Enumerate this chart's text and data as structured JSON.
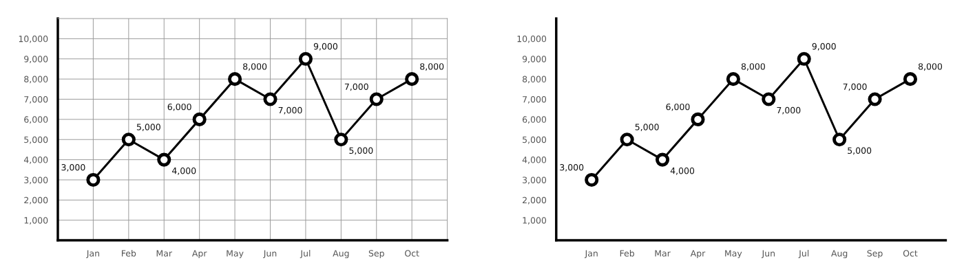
{
  "chart_data": [
    {
      "type": "line",
      "categories": [
        "Jan",
        "Feb",
        "Mar",
        "Apr",
        "May",
        "Jun",
        "Jul",
        "Aug",
        "Sep",
        "Oct"
      ],
      "series": [
        {
          "color": "#000000",
          "values": [
            3000,
            5000,
            4000,
            6000,
            8000,
            7000,
            9000,
            5000,
            7000,
            8000
          ],
          "value_labels": [
            "3,000",
            "5,000",
            "4,000",
            "6,000",
            "8,000",
            "7,000",
            "9,000",
            "5,000",
            "7,000",
            "8,000"
          ]
        }
      ],
      "ylim": [
        0,
        11000
      ],
      "yticks": [
        {
          "value": 1000,
          "label": "1,000"
        },
        {
          "value": 2000,
          "label": "2,000"
        },
        {
          "value": 3000,
          "label": "3,000"
        },
        {
          "value": 4000,
          "label": "4,000"
        },
        {
          "value": 5000,
          "label": "5,000"
        },
        {
          "value": 6000,
          "label": "6,000"
        },
        {
          "value": 7000,
          "label": "7,000"
        },
        {
          "value": 8000,
          "label": "8,000"
        },
        {
          "value": 9000,
          "label": "9,000"
        },
        {
          "value": 10000,
          "label": "10,000"
        }
      ],
      "grid": true,
      "marker": "circle",
      "line_style": "solid"
    },
    {
      "type": "line",
      "categories": [
        "Jan",
        "Feb",
        "Mar",
        "Apr",
        "May",
        "Jun",
        "Jul",
        "Aug",
        "Sep",
        "Oct"
      ],
      "series": [
        {
          "color": "#000000",
          "values": [
            3000,
            5000,
            4000,
            6000,
            8000,
            7000,
            9000,
            5000,
            7000,
            8000
          ],
          "value_labels": [
            "3,000",
            "5,000",
            "4,000",
            "6,000",
            "8,000",
            "7,000",
            "9,000",
            "5,000",
            "7,000",
            "8,000"
          ]
        }
      ],
      "ylim": [
        0,
        11000
      ],
      "yticks": [
        {
          "value": 1000,
          "label": "1,000"
        },
        {
          "value": 2000,
          "label": "2,000"
        },
        {
          "value": 3000,
          "label": "3,000"
        },
        {
          "value": 4000,
          "label": "4,000"
        },
        {
          "value": 5000,
          "label": "5,000"
        },
        {
          "value": 6000,
          "label": "6,000"
        },
        {
          "value": 7000,
          "label": "7,000"
        },
        {
          "value": 8000,
          "label": "8,000"
        },
        {
          "value": 9000,
          "label": "9,000"
        },
        {
          "value": 10000,
          "label": "10,000"
        }
      ],
      "grid": false,
      "marker": "circle",
      "line_style": "solid"
    }
  ]
}
